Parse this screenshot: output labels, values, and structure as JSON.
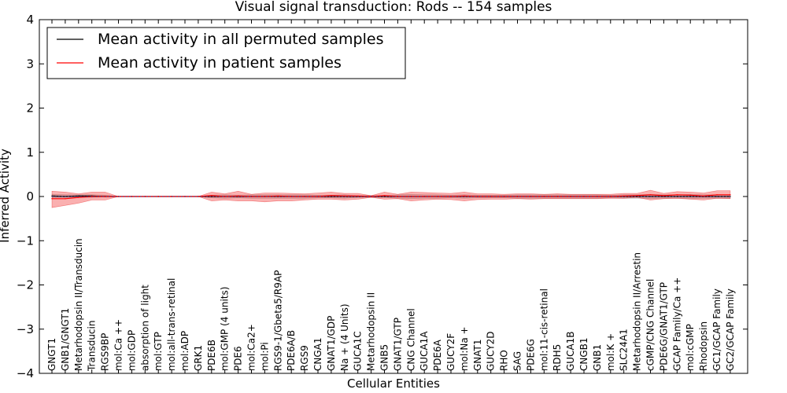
{
  "chart_data": {
    "type": "line",
    "title": "Visual signal transduction: Rods -- 154 samples",
    "xlabel": "Cellular Entities",
    "ylabel": "Inferred Activity",
    "ylim": [
      -4,
      4
    ],
    "yticks": [
      -4,
      -3,
      -2,
      -1,
      0,
      1,
      2,
      3,
      4
    ],
    "ytick_labels": [
      "−4",
      "−3",
      "−2",
      "−1",
      "0",
      "1",
      "2",
      "3",
      "4"
    ],
    "legend_position": "top-left",
    "categories": [
      "GNGT1",
      "GNB1/GNGT1",
      "Metarhodopsin II/Transducin",
      "Transducin",
      "RGS9BP",
      "mol:Ca ++",
      "mol:GDP",
      "absorption of light",
      "mol:GTP",
      "mol:all-trans-retinal",
      "mol:ADP",
      "GRK1",
      "PDE6B",
      "mol:GMP (4 units)",
      "PDE6",
      "mol:Ca2+",
      "mol:Pi",
      "RGS9-1/Gbeta5/R9AP",
      "PDE6A/B",
      "RGS9",
      "CNGA1",
      "GNAT1/GDP",
      "Na + (4 Units)",
      "GUCA1C",
      "Metarhodopsin II",
      "GNB5",
      "GNAT1/GTP",
      "CNG Channel",
      "GUCA1A",
      "PDE6A",
      "GUCY2F",
      "mol:Na +",
      "GNAT1",
      "GUCY2D",
      "RHO",
      "SAG",
      "PDE6G",
      "mol:11-cis-retinal",
      "RDH5",
      "GUCA1B",
      "CNGB1",
      "GNB1",
      "mol:K +",
      "SLC24A1",
      "Metarhodopsin II/Arrestin",
      "cGMP/CNG Channel",
      "PDE6G/GNAT1/GTP",
      "GCAP Family/Ca ++",
      "mol:cGMP",
      "Rhodopsin",
      "GC1/GCAP Family",
      "GC2/GCAP Family"
    ],
    "series": [
      {
        "name": "Mean activity in all permuted samples",
        "color": "#000000",
        "values": [
          0.01,
          0.0,
          0.01,
          0.01,
          0.0,
          0.0,
          0.0,
          0.0,
          0.0,
          0.0,
          0.0,
          0.0,
          0.0,
          0.0,
          0.0,
          0.0,
          0.0,
          0.0,
          0.0,
          0.0,
          0.0,
          0.0,
          0.0,
          0.0,
          0.0,
          0.0,
          0.0,
          0.0,
          0.0,
          0.0,
          0.0,
          0.0,
          0.0,
          0.0,
          0.0,
          0.0,
          0.0,
          0.0,
          0.0,
          0.0,
          0.0,
          0.0,
          0.0,
          0.0,
          0.0,
          0.0,
          0.0,
          0.0,
          0.0,
          0.0,
          0.0,
          0.0
        ],
        "lower": [
          -0.03,
          -0.02,
          -0.02,
          -0.02,
          -0.01,
          0.0,
          0.0,
          0.0,
          0.0,
          0.0,
          0.0,
          0.0,
          -0.03,
          -0.04,
          -0.03,
          -0.04,
          -0.04,
          -0.04,
          -0.04,
          -0.04,
          -0.03,
          -0.03,
          -0.04,
          -0.02,
          -0.02,
          -0.02,
          -0.04,
          -0.05,
          -0.04,
          -0.04,
          -0.03,
          -0.04,
          -0.03,
          -0.03,
          -0.03,
          -0.04,
          -0.04,
          -0.04,
          -0.04,
          -0.04,
          -0.04,
          -0.04,
          -0.03,
          -0.04,
          -0.04,
          -0.05,
          -0.04,
          -0.04,
          -0.05,
          -0.04,
          -0.04,
          -0.04
        ],
        "upper": [
          0.05,
          0.04,
          0.04,
          0.04,
          0.03,
          0.0,
          0.0,
          0.0,
          0.0,
          0.0,
          0.0,
          0.0,
          0.03,
          0.04,
          0.03,
          0.04,
          0.04,
          0.04,
          0.04,
          0.04,
          0.03,
          0.03,
          0.04,
          0.02,
          0.02,
          0.02,
          0.04,
          0.05,
          0.04,
          0.04,
          0.03,
          0.04,
          0.03,
          0.03,
          0.03,
          0.04,
          0.04,
          0.04,
          0.04,
          0.04,
          0.04,
          0.04,
          0.03,
          0.04,
          0.04,
          0.05,
          0.04,
          0.04,
          0.05,
          0.04,
          0.04,
          0.04
        ]
      },
      {
        "name": "Mean activity in patient samples",
        "color": "#ff0000",
        "values": [
          -0.05,
          -0.05,
          -0.02,
          0.0,
          0.0,
          0.0,
          0.0,
          0.0,
          0.0,
          0.0,
          0.0,
          0.0,
          0.02,
          0.0,
          0.01,
          0.0,
          0.0,
          0.01,
          0.0,
          0.0,
          0.0,
          0.02,
          0.01,
          0.01,
          0.0,
          0.02,
          0.0,
          0.0,
          0.0,
          0.0,
          0.0,
          0.01,
          0.0,
          0.0,
          0.0,
          0.0,
          0.0,
          0.0,
          0.0,
          0.0,
          0.0,
          0.0,
          0.0,
          0.01,
          0.02,
          0.04,
          0.02,
          0.04,
          0.03,
          0.01,
          0.04,
          0.04
        ],
        "lower": [
          -0.25,
          -0.2,
          -0.15,
          -0.08,
          -0.08,
          0.0,
          0.0,
          0.0,
          0.0,
          0.0,
          0.0,
          0.0,
          -0.1,
          -0.08,
          -0.1,
          -0.1,
          -0.12,
          -0.1,
          -0.1,
          -0.08,
          -0.06,
          -0.06,
          -0.08,
          -0.06,
          -0.02,
          -0.06,
          -0.05,
          -0.1,
          -0.08,
          -0.06,
          -0.07,
          -0.1,
          -0.07,
          -0.06,
          -0.06,
          -0.05,
          -0.06,
          -0.05,
          -0.05,
          -0.05,
          -0.05,
          -0.05,
          -0.04,
          -0.04,
          -0.02,
          -0.08,
          -0.05,
          -0.04,
          -0.06,
          -0.08,
          -0.04,
          -0.05
        ],
        "upper": [
          0.12,
          0.1,
          0.06,
          0.1,
          0.1,
          0.0,
          0.0,
          0.0,
          0.0,
          0.0,
          0.0,
          0.0,
          0.1,
          0.06,
          0.12,
          0.05,
          0.08,
          0.08,
          0.07,
          0.06,
          0.08,
          0.1,
          0.07,
          0.07,
          0.02,
          0.1,
          0.05,
          0.1,
          0.09,
          0.08,
          0.07,
          0.1,
          0.06,
          0.06,
          0.05,
          0.06,
          0.06,
          0.05,
          0.06,
          0.05,
          0.05,
          0.05,
          0.05,
          0.07,
          0.07,
          0.14,
          0.07,
          0.11,
          0.1,
          0.08,
          0.13,
          0.13
        ]
      }
    ]
  }
}
